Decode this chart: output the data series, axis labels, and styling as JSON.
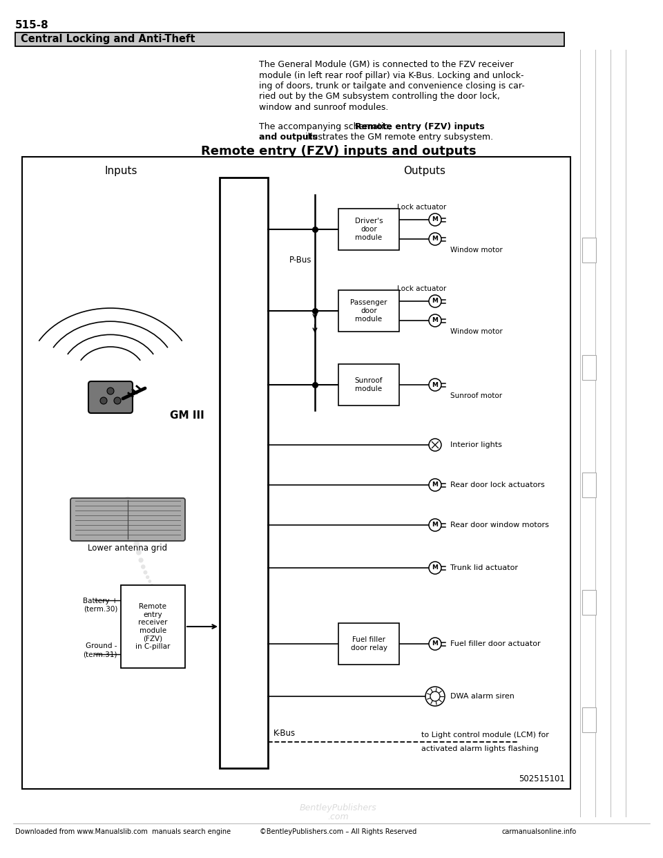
{
  "page_number": "515-8",
  "section_title": "Central Locking and Anti-Theft",
  "para1_lines": [
    "The General Module (GM) is connected to the FZV receiver",
    "module (in left rear roof pillar) via K-Bus. Locking and unlock-",
    "ing of doors, trunk or tailgate and convenience closing is car-",
    "ried out by the GM subsystem controlling the door lock,",
    "window and sunroof modules."
  ],
  "para2_prefix": "The accompanying schematic, ",
  "para2_bold1": "Remote entry (FZV) inputs",
  "para2_bold2": "and outputs",
  "para2_suffix": ", illustrates the GM remote entry subsystem.",
  "diagram_title": "Remote entry (FZV) inputs and outputs",
  "inputs_label": "Inputs",
  "outputs_label": "Outputs",
  "gm_label": "GM III",
  "pbus_label": "P-Bus",
  "kbus_label": "K-Bus",
  "lower_antenna_label": "Lower antenna grid",
  "battery_label": "Battery +\n(term.30)",
  "ground_label": "Ground -\n(term.31)",
  "fzv_label": "Remote\nentry\nreceiver\nmodule\n(FZV)\nin C-pillar",
  "drv_label": "Driver's\ndoor\nmodule",
  "pas_label": "Passenger\ndoor\nmodule",
  "sun_label": "Sunroof\nmodule",
  "ff_label": "Fuel filler\ndoor relay",
  "lock_act": "Lock actuator",
  "win_mot": "Window motor",
  "sun_mot": "Sunroof motor",
  "int_lights": "Interior lights",
  "rear_lock": "Rear door lock actuators",
  "rear_win": "Rear door window motors",
  "trunk_act": "Trunk lid actuator",
  "ff_act": "Fuel filler door actuator",
  "dwa": "DWA alarm siren",
  "lcm1": "to Light control module (LCM) for",
  "lcm2": "activated alarm lights flashing",
  "fig_num": "502515101",
  "footer_left": "Downloaded from www.Manualslib.com  manuals search engine",
  "footer_center": "©BentleyPublishers.com – All Rights Reserved",
  "footer_right": "carmanualsonline.info",
  "wm1": "BentleyPublishers",
  "wm2": ".com"
}
